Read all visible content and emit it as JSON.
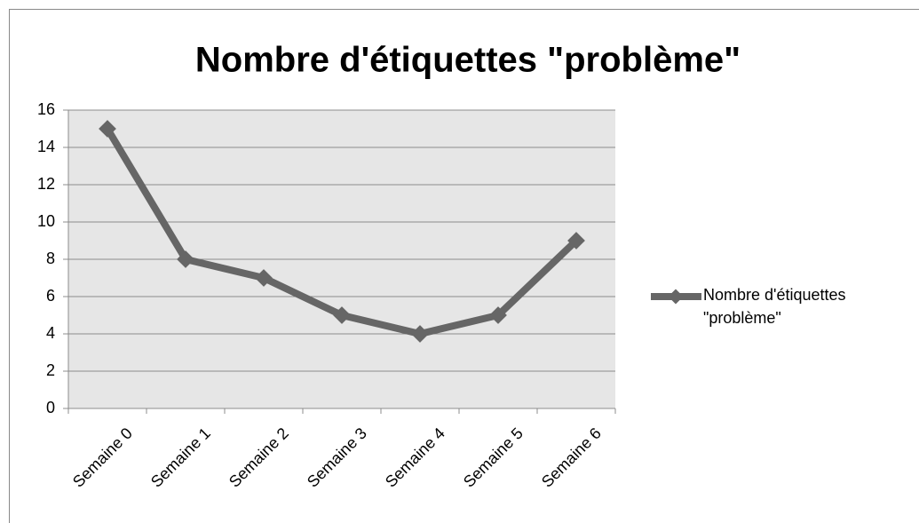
{
  "chart_data": {
    "type": "line",
    "title": "Nombre d'étiquettes \"problème\"",
    "categories": [
      "Semaine 0",
      "Semaine 1",
      "Semaine 2",
      "Semaine 3",
      "Semaine 4",
      "Semaine 5",
      "Semaine 6"
    ],
    "series": [
      {
        "name": "Nombre d'étiquettes \"problème\"",
        "color": "#666666",
        "values": [
          15,
          8,
          7,
          5,
          4,
          5,
          9
        ]
      }
    ],
    "ylim": [
      0,
      16
    ],
    "yticks": [
      0,
      2,
      4,
      6,
      8,
      10,
      12,
      14,
      16
    ],
    "grid": true,
    "legend": "right"
  }
}
